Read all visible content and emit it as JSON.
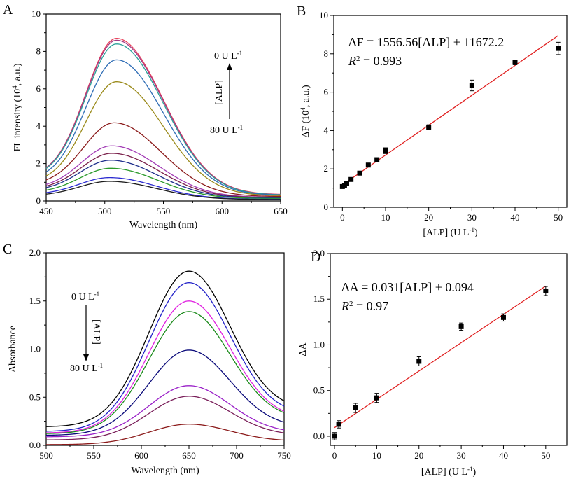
{
  "chart_data": [
    {
      "panel": "A",
      "type": "line",
      "xlabel": "Wavelength (nm)",
      "ylabel_main": "FL intensity (10",
      "ylabel_exp": "4",
      "ylabel_tail": ", a.u.)",
      "xlim": [
        450,
        650
      ],
      "ylim": [
        0,
        10
      ],
      "xticks": [
        450,
        500,
        550,
        600,
        650
      ],
      "yticks": [
        0,
        2,
        4,
        6,
        8,
        10
      ],
      "annotation": {
        "top_main": "0 U L",
        "top_exp": "-1",
        "bottom_main": "80 U L",
        "bottom_exp": "-1",
        "arrow_label": "[ALP]"
      },
      "series": [
        {
          "color": "#e8415a",
          "peak_x": 510,
          "peak": 8.7,
          "at450": 2.3,
          "at650": 0.52
        },
        {
          "color": "#a23b84",
          "peak_x": 510,
          "peak": 8.6,
          "at450": 2.3,
          "at650": 0.5
        },
        {
          "color": "#2aa199",
          "peak_x": 510,
          "peak": 8.4,
          "at450": 2.25,
          "at650": 0.49
        },
        {
          "color": "#2f6db5",
          "peak_x": 510,
          "peak": 7.55,
          "at450": 2.0,
          "at650": 0.46
        },
        {
          "color": "#9a8a1a",
          "peak_x": 510,
          "peak": 6.38,
          "at450": 1.75,
          "at650": 0.42
        },
        {
          "color": "#8b1a1a",
          "peak_x": 508,
          "peak": 4.18,
          "at450": 1.55,
          "at650": 0.36
        },
        {
          "color": "#a23bb5",
          "peak_x": 506,
          "peak": 2.95,
          "at450": 1.2,
          "at650": 0.3
        },
        {
          "color": "#7a1f4a",
          "peak_x": 506,
          "peak": 2.55,
          "at450": 1.1,
          "at650": 0.27
        },
        {
          "color": "#1f2f8c",
          "peak_x": 505,
          "peak": 2.18,
          "at450": 0.98,
          "at650": 0.24
        },
        {
          "color": "#2a9a2a",
          "peak_x": 505,
          "peak": 1.75,
          "at450": 0.8,
          "at650": 0.2
        },
        {
          "color": "#2a2ad0",
          "peak_x": 504,
          "peak": 1.25,
          "at450": 0.62,
          "at650": 0.14
        },
        {
          "color": "#1a1a1a",
          "peak_x": 504,
          "peak": 1.05,
          "at450": 0.5,
          "at650": 0.12
        }
      ]
    },
    {
      "panel": "B",
      "type": "scatter",
      "xlabel_main": "[ALP] (U L",
      "xlabel_exp": "-1",
      "xlabel_tail": ")",
      "ylabel_main": "ΔF (10",
      "ylabel_exp": "4",
      "ylabel_tail": ", a.u.)",
      "xlim": [
        -2,
        52
      ],
      "ylim": [
        0,
        10
      ],
      "xticks": [
        0,
        10,
        20,
        30,
        40,
        50
      ],
      "yticks": [
        0,
        2,
        4,
        6,
        8,
        10
      ],
      "equation": "ΔF = 1556.56[ALP] + 11672.2",
      "r2_label": "R",
      "r2_exp": "2",
      "r2_value": " = 0.993",
      "fit": {
        "slope": 0.155656,
        "intercept": 1.16722,
        "x0": 0,
        "x1": 50,
        "color": "#e02020"
      },
      "points": [
        {
          "x": 0,
          "y": 1.08,
          "err": 0.08
        },
        {
          "x": 0.5,
          "y": 1.12,
          "err": 0.06
        },
        {
          "x": 1,
          "y": 1.25,
          "err": 0.06
        },
        {
          "x": 2,
          "y": 1.45,
          "err": 0.06
        },
        {
          "x": 4,
          "y": 1.78,
          "err": 0.06
        },
        {
          "x": 6,
          "y": 2.2,
          "err": 0.06
        },
        {
          "x": 8,
          "y": 2.48,
          "err": 0.08
        },
        {
          "x": 10,
          "y": 2.95,
          "err": 0.15
        },
        {
          "x": 20,
          "y": 4.18,
          "err": 0.12
        },
        {
          "x": 30,
          "y": 6.35,
          "err": 0.28
        },
        {
          "x": 40,
          "y": 7.55,
          "err": 0.12
        },
        {
          "x": 50,
          "y": 8.28,
          "err": 0.32
        }
      ]
    },
    {
      "panel": "C",
      "type": "line",
      "xlabel": "Wavelength (nm)",
      "ylabel": "Absorbance",
      "xlim": [
        500,
        750
      ],
      "ylim": [
        0,
        2.0
      ],
      "xticks": [
        500,
        550,
        600,
        650,
        700,
        750
      ],
      "yticks": [
        "0.0",
        "0.5",
        "1.0",
        "1.5",
        "2.0"
      ],
      "annotation": {
        "top_main": "0 U L",
        "top_exp": "-1",
        "bottom_main": "80 U L",
        "bottom_exp": "-1",
        "arrow_label": "[ALP]"
      },
      "series": [
        {
          "color": "#000000",
          "peak": 1.81,
          "at500": 0.24,
          "at750": 0.43
        },
        {
          "color": "#2222c8",
          "peak": 1.69,
          "at500": 0.18,
          "at750": 0.37
        },
        {
          "color": "#e020e0",
          "peak": 1.5,
          "at500": 0.16,
          "at750": 0.32
        },
        {
          "color": "#1a8a1a",
          "peak": 1.39,
          "at500": 0.15,
          "at750": 0.31
        },
        {
          "color": "#0a0a7a",
          "peak": 0.99,
          "at500": 0.13,
          "at750": 0.22
        },
        {
          "color": "#9a20c8",
          "peak": 0.62,
          "at500": 0.11,
          "at750": 0.15
        },
        {
          "color": "#7a1f5a",
          "peak": 0.51,
          "at500": 0.07,
          "at750": 0.12
        },
        {
          "color": "#8b1a1a",
          "peak": 0.22,
          "at500": 0.01,
          "at750": 0.05
        }
      ]
    },
    {
      "panel": "D",
      "type": "scatter",
      "xlabel_main": "[ALP] (U L",
      "xlabel_exp": "-1",
      "xlabel_tail": ")",
      "ylabel": "ΔA",
      "xlim": [
        -1,
        55
      ],
      "ylim": [
        -0.1,
        2.0
      ],
      "xticks": [
        0,
        10,
        20,
        30,
        40,
        50
      ],
      "yticks": [
        "0.0",
        "0.5",
        "1.0",
        "1.5",
        "2.0"
      ],
      "equation": "ΔA = 0.031[ALP] + 0.094",
      "r2_label": "R",
      "r2_exp": "2",
      "r2_value": " = 0.97",
      "fit": {
        "slope": 0.031,
        "intercept": 0.094,
        "x0": 0,
        "x1": 50,
        "color": "#e02020"
      },
      "points": [
        {
          "x": 0,
          "y": 0.0,
          "err": 0.04
        },
        {
          "x": 1,
          "y": 0.13,
          "err": 0.04
        },
        {
          "x": 5,
          "y": 0.31,
          "err": 0.05
        },
        {
          "x": 10,
          "y": 0.42,
          "err": 0.05
        },
        {
          "x": 20,
          "y": 0.82,
          "err": 0.05
        },
        {
          "x": 30,
          "y": 1.2,
          "err": 0.04
        },
        {
          "x": 40,
          "y": 1.3,
          "err": 0.04
        },
        {
          "x": 50,
          "y": 1.59,
          "err": 0.05
        }
      ]
    }
  ],
  "panels": {
    "a": "A",
    "b": "B",
    "c": "C",
    "d": "D"
  }
}
